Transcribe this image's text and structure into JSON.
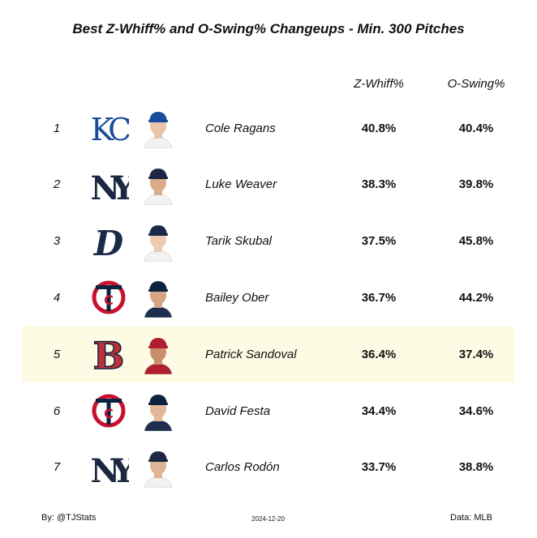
{
  "title": "Best Z-Whiff% and O-Swing% Changeups - Min. 300 Pitches",
  "columns": {
    "z_whiff": "Z-Whiff%",
    "o_swing": "O-Swing%"
  },
  "chart_data": {
    "type": "table",
    "title": "Best Z-Whiff% and O-Swing% Changeups - Min. 300 Pitches",
    "columns": [
      "Z-Whiff%",
      "O-Swing%"
    ],
    "rows": [
      {
        "rank": "1",
        "name": "Cole Ragans",
        "team": "KC",
        "logo": "kc-royals-logo-icon",
        "z_whiff": "40.8%",
        "o_swing": "40.4%",
        "highlighted": false
      },
      {
        "rank": "2",
        "name": "Luke Weaver",
        "team": "NYY",
        "logo": "ny-yankees-logo-icon",
        "z_whiff": "38.3%",
        "o_swing": "39.8%",
        "highlighted": false
      },
      {
        "rank": "3",
        "name": "Tarik Skubal",
        "team": "DET",
        "logo": "det-tigers-logo-icon",
        "z_whiff": "37.5%",
        "o_swing": "45.8%",
        "highlighted": false
      },
      {
        "rank": "4",
        "name": "Bailey Ober",
        "team": "MIN",
        "logo": "min-twins-logo-icon",
        "z_whiff": "36.7%",
        "o_swing": "44.2%",
        "highlighted": false
      },
      {
        "rank": "5",
        "name": "Patrick Sandoval",
        "team": "BOS",
        "logo": "bos-redsox-logo-icon",
        "z_whiff": "36.4%",
        "o_swing": "37.4%",
        "highlighted": true
      },
      {
        "rank": "6",
        "name": "David Festa",
        "team": "MIN",
        "logo": "min-twins-logo-icon",
        "z_whiff": "34.4%",
        "o_swing": "34.6%",
        "highlighted": false
      },
      {
        "rank": "7",
        "name": "Carlos Rodón",
        "team": "NYY",
        "logo": "ny-yankees-logo-icon",
        "z_whiff": "33.7%",
        "o_swing": "38.8%",
        "highlighted": false
      }
    ]
  },
  "colors": {
    "highlight": "#fdfbe4",
    "kc_blue": "#1a4c9c",
    "nyy_navy": "#1c2841",
    "det_navy": "#1b2a47",
    "min_red": "#c8102e",
    "min_navy": "#0c2340",
    "bos_red": "#bd3039",
    "bos_navy": "#0c2340"
  },
  "footer": {
    "author": "By: @TJStats",
    "date": "2024-12-20",
    "source": "Data: MLB"
  }
}
